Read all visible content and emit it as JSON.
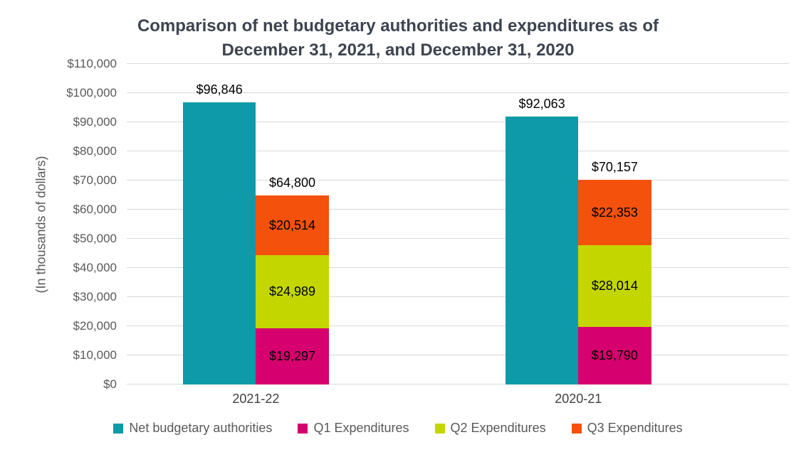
{
  "chart_data": {
    "type": "bar",
    "title": "Comparison of net budgetary authorities and expenditures as of December 31, 2021, and December 31, 2020",
    "ylabel": "(In thousands of dollars)",
    "ylim": [
      0,
      110000
    ],
    "ytick_step": 10000,
    "ytick_labels": [
      "$0",
      "$10,000",
      "$20,000",
      "$30,000",
      "$40,000",
      "$50,000",
      "$60,000",
      "$70,000",
      "$80,000",
      "$90,000",
      "$100,000",
      "$110,000"
    ],
    "grid": true,
    "legend_position": "bottom",
    "categories": [
      "2021-22",
      "2020-21"
    ],
    "series": [
      {
        "name": "Net budgetary authorities",
        "color": "#0e9aa8",
        "values": [
          96846,
          92063
        ],
        "labels": [
          "$96,846",
          "$92,063"
        ]
      },
      {
        "name": "Q1 Expenditures",
        "color": "#d6006e",
        "values": [
          19297,
          19790
        ],
        "labels": [
          "$19,297",
          "$19,790"
        ]
      },
      {
        "name": "Q2 Expenditures",
        "color": "#c3d600",
        "values": [
          24989,
          28014
        ],
        "labels": [
          "$24,989",
          "$28,014"
        ]
      },
      {
        "name": "Q3 Expenditures",
        "color": "#f4510c",
        "values": [
          20514,
          22353
        ],
        "labels": [
          "$20,514",
          "$22,353"
        ]
      }
    ],
    "stacked_totals": [
      64800,
      70157
    ],
    "stacked_total_labels": [
      "$64,800",
      "$70,157"
    ]
  }
}
